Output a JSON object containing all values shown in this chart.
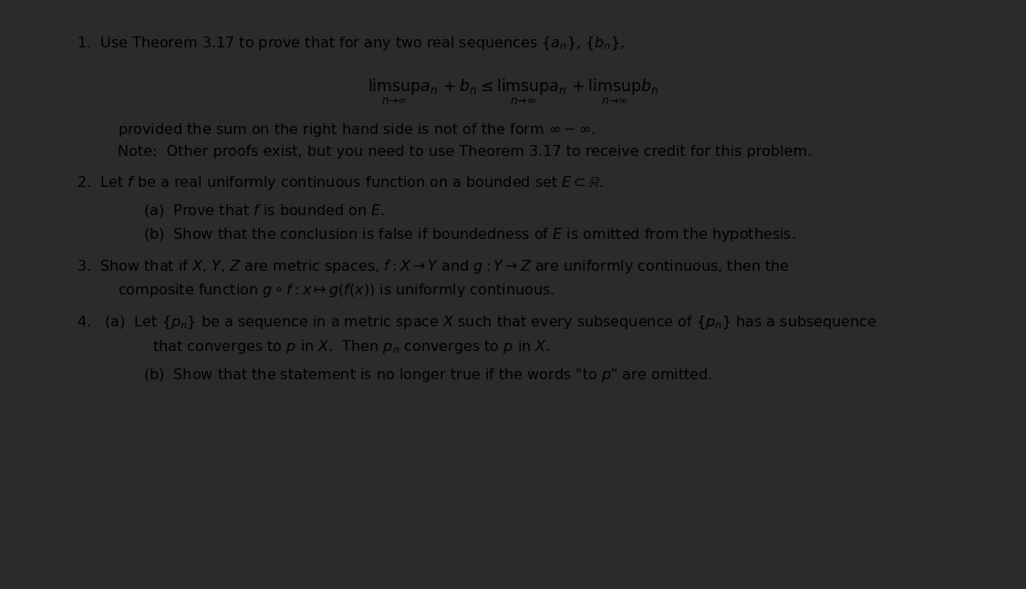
{
  "background_color": "#ffffff",
  "border_color": "#2b2b2b",
  "figsize": [
    11.25,
    6.46
  ],
  "dpi": 100
}
